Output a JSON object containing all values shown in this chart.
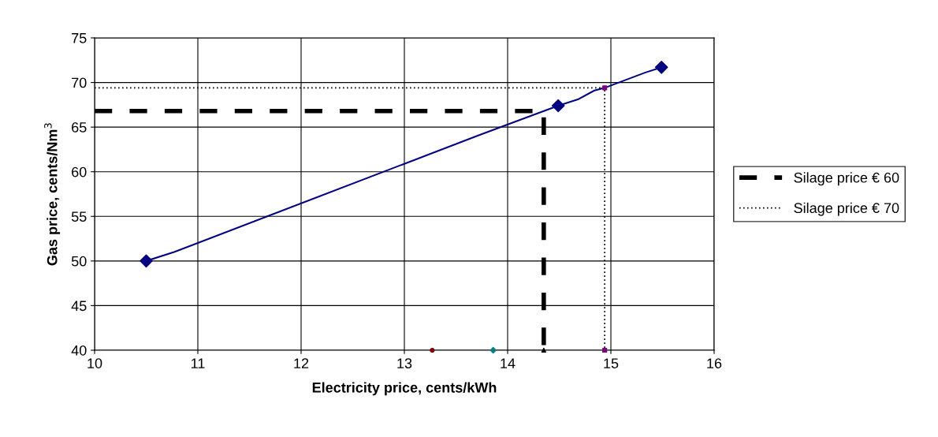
{
  "chart_data": {
    "type": "line",
    "xlabel": "Electricity price, cents/kWh",
    "ylabel": "Gas price, cents/Nm$^{3}$",
    "xlim": [
      10,
      16
    ],
    "xticks": [
      10,
      11,
      12,
      13,
      14,
      15,
      16
    ],
    "ylim": [
      40,
      75
    ],
    "yticks": [
      40,
      45,
      50,
      55,
      60,
      65,
      70,
      75
    ],
    "grid": true,
    "legend": "right",
    "series": [
      {
        "color": "#000080",
        "line_style": "solid",
        "marker": "none",
        "x": [
          10.5,
          10.77,
          13.7,
          14.14,
          14.49,
          14.68,
          14.84,
          14.94,
          15.33,
          15.49
        ],
        "values": [
          50,
          51,
          64,
          65.9,
          67.4,
          68.1,
          69.1,
          69.4,
          71.1,
          71.7
        ]
      },
      {
        "type": "scatter",
        "color": "#000080",
        "marker": "diamond",
        "x": [
          10.5,
          14.49,
          15.49
        ],
        "values": [
          50,
          67.4,
          71.7
        ]
      },
      {
        "name": "Silage price € 60",
        "color": "#000000",
        "line_style": "dashed",
        "marker": "none",
        "x": [
          10,
          14.35,
          14.35
        ],
        "values": [
          66.8,
          66.8,
          40
        ]
      },
      {
        "name": "Silage price € 70",
        "color": "#000000",
        "line_style": "dotted",
        "marker": "none",
        "x": [
          10,
          14.94,
          14.94
        ],
        "values": [
          69.4,
          69.4,
          40
        ]
      },
      {
        "type": "scatter",
        "color": "#800080",
        "marker": "square",
        "x": [
          14.94,
          14.94
        ],
        "values": [
          69.4,
          40
        ]
      },
      {
        "type": "scatter",
        "color": "#800000",
        "marker": "circle",
        "x": [
          13.27
        ],
        "values": [
          40
        ]
      },
      {
        "type": "scatter",
        "color": "#008080",
        "marker": "diamond",
        "x": [
          13.86
        ],
        "values": [
          40
        ]
      },
      {
        "type": "scatter",
        "color": "#000000",
        "marker": "triangle",
        "x": [
          14.35
        ],
        "values": [
          40
        ]
      }
    ]
  }
}
